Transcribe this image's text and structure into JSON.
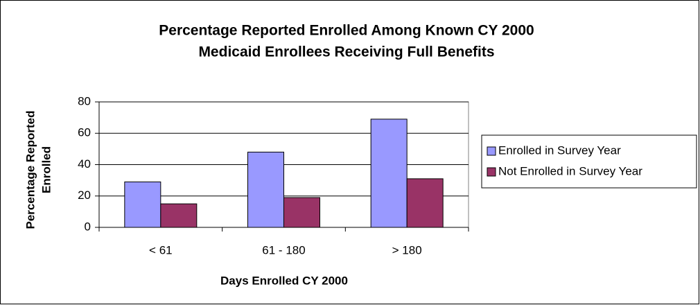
{
  "chart_data": {
    "type": "bar",
    "title": [
      "Percentage Reported Enrolled Among Known CY 2000",
      "Medicaid Enrollees Receiving Full Benefits"
    ],
    "y_label": [
      "Percentage Reported",
      "Enrolled"
    ],
    "x_label": "Days Enrolled CY 2000",
    "categories": [
      "< 61",
      "61 - 180",
      "> 180"
    ],
    "series": [
      {
        "name": "Enrolled in Survey Year",
        "color": "#9999ff",
        "values": [
          29,
          48,
          69
        ]
      },
      {
        "name": "Not Enrolled in Survey Year",
        "color": "#993366",
        "values": [
          15,
          19,
          31
        ]
      }
    ],
    "ylim": [
      0,
      80
    ],
    "yticks": [
      0,
      20,
      40,
      60,
      80
    ],
    "grid": true,
    "legend": "right"
  }
}
